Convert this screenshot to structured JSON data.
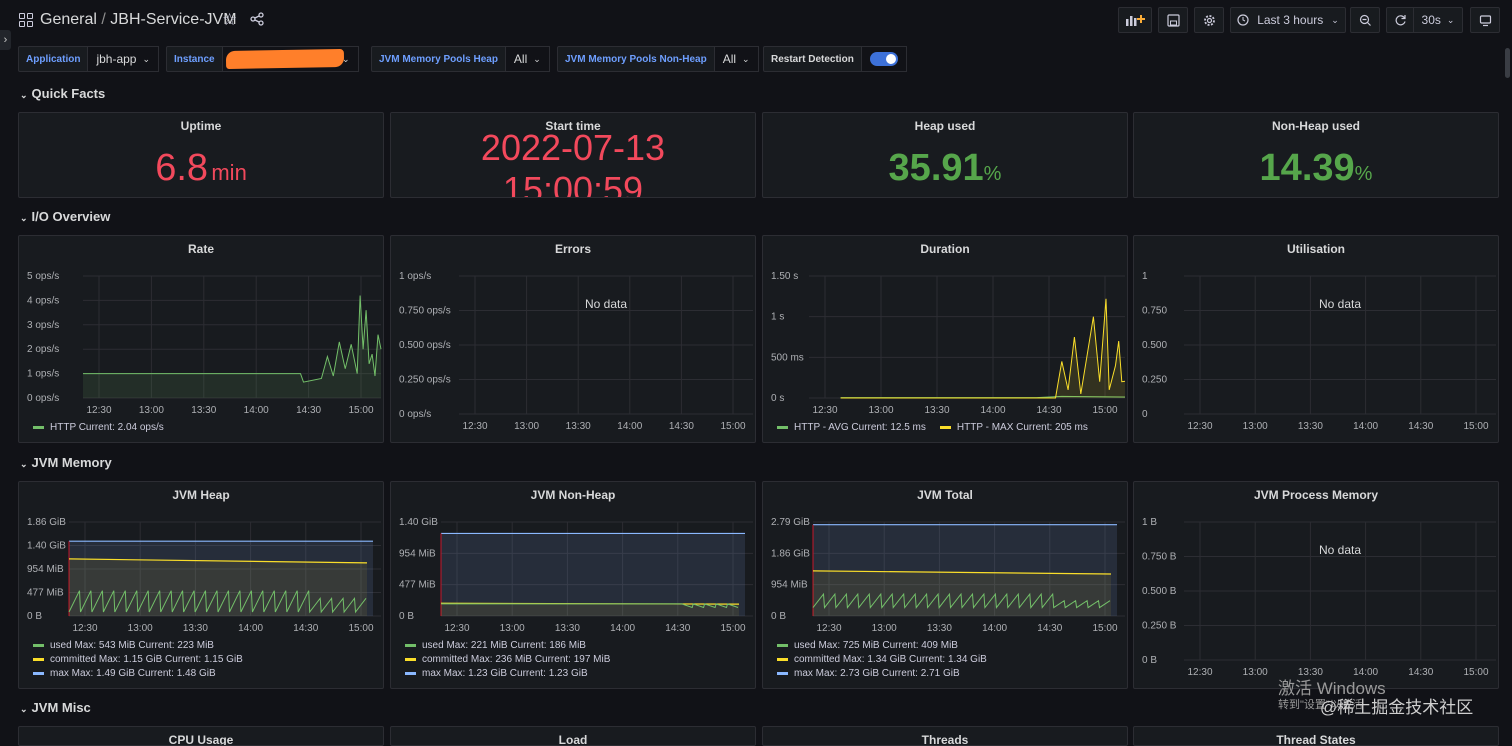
{
  "header": {
    "folder": "General",
    "separator": "/",
    "dashboard_title": "JBH-Service-JVM",
    "time_range": "Last 3 hours",
    "refresh": "30s"
  },
  "variables": [
    {
      "label": "Application",
      "value": "jbh-app"
    },
    {
      "label": "Instance",
      "value": ""
    },
    {
      "label": "JVM Memory Pools Heap",
      "value": "All"
    },
    {
      "label": "JVM Memory Pools Non-Heap",
      "value": "All"
    },
    {
      "label": "Restart Detection",
      "value": ""
    }
  ],
  "rows": {
    "quick_facts": "Quick Facts",
    "io_overview": "I/O Overview",
    "jvm_memory": "JVM Memory",
    "jvm_misc": "JVM Misc"
  },
  "stats": {
    "uptime": {
      "title": "Uptime",
      "value": "6.8",
      "unit": "min"
    },
    "start_time": {
      "title": "Start time",
      "line1": "2022-07-13",
      "line2": "15:00:59"
    },
    "heap_used": {
      "title": "Heap used",
      "value": "35.91",
      "unit": "%"
    },
    "nonheap_used": {
      "title": "Non-Heap used",
      "value": "14.39",
      "unit": "%"
    }
  },
  "no_data": "No data",
  "colors": {
    "red": "#f2495c",
    "green": "#73bf69",
    "yellow": "#fade2a",
    "cyan": "#8ab8ff",
    "accent": "#6e9fff"
  },
  "chart_data": [
    {
      "type": "line",
      "title": "Rate",
      "x": [
        "12:30",
        "13:00",
        "13:30",
        "14:00",
        "14:30",
        "15:00"
      ],
      "yticks": [
        "5 ops/s",
        "4 ops/s",
        "3 ops/s",
        "2 ops/s",
        "1 ops/s",
        "0 ops/s"
      ],
      "ylim": [
        0,
        5
      ],
      "series": [
        {
          "name": "HTTP",
          "legend": "HTTP  Current: 2.04 ops/s",
          "color": "#73bf69",
          "points": [
            [
              0,
              1
            ],
            [
              0.73,
              1
            ],
            [
              0.74,
              0.65
            ],
            [
              0.8,
              0.8
            ],
            [
              0.82,
              1.7
            ],
            [
              0.84,
              0.9
            ],
            [
              0.86,
              2.3
            ],
            [
              0.88,
              1.2
            ],
            [
              0.9,
              2.2
            ],
            [
              0.92,
              1.0
            ],
            [
              0.93,
              4.2
            ],
            [
              0.94,
              2.0
            ],
            [
              0.95,
              3.6
            ],
            [
              0.96,
              1.4
            ],
            [
              0.97,
              1.8
            ],
            [
              0.98,
              0.9
            ],
            [
              0.99,
              2.6
            ],
            [
              1.0,
              2.0
            ]
          ]
        }
      ]
    },
    {
      "type": "line",
      "title": "Errors",
      "x": [
        "12:30",
        "13:00",
        "13:30",
        "14:00",
        "14:30",
        "15:00"
      ],
      "yticks": [
        "1 ops/s",
        "0.750 ops/s",
        "0.500 ops/s",
        "0.250 ops/s",
        "0 ops/s"
      ],
      "series": []
    },
    {
      "type": "line",
      "title": "Duration",
      "x": [
        "12:30",
        "13:00",
        "13:30",
        "14:00",
        "14:30",
        "15:00"
      ],
      "yticks": [
        "1.50 s",
        "1 s",
        "500 ms",
        "0 s"
      ],
      "ylim": [
        0,
        1.5
      ],
      "series": [
        {
          "name": "HTTP - AVG",
          "legend": "HTTP - AVG  Current: 12.5 ms",
          "color": "#73bf69",
          "points": [
            [
              0.1,
              0.005
            ],
            [
              0.72,
              0.005
            ],
            [
              0.8,
              0.02
            ],
            [
              1.0,
              0.0125
            ]
          ]
        },
        {
          "name": "HTTP - MAX",
          "legend": "HTTP - MAX  Current: 205 ms",
          "color": "#fade2a",
          "points": [
            [
              0.1,
              0.0
            ],
            [
              0.78,
              0.0
            ],
            [
              0.8,
              0.45
            ],
            [
              0.82,
              0.1
            ],
            [
              0.84,
              0.75
            ],
            [
              0.86,
              0.05
            ],
            [
              0.9,
              1.0
            ],
            [
              0.92,
              0.2
            ],
            [
              0.94,
              1.22
            ],
            [
              0.95,
              0.1
            ],
            [
              0.97,
              0.4
            ],
            [
              0.98,
              0.7
            ],
            [
              0.99,
              0.2
            ],
            [
              1.0,
              0.205
            ]
          ]
        }
      ]
    },
    {
      "type": "line",
      "title": "Utilisation",
      "x": [
        "12:30",
        "13:00",
        "13:30",
        "14:00",
        "14:30",
        "15:00"
      ],
      "yticks": [
        "1",
        "0.750",
        "0.500",
        "0.250",
        "0"
      ],
      "series": []
    },
    {
      "type": "area",
      "title": "JVM Heap",
      "x": [
        "12:30",
        "13:00",
        "13:30",
        "14:00",
        "14:30",
        "15:00"
      ],
      "yticks": [
        "1.86 GiB",
        "1.40 GiB",
        "954 MiB",
        "477 MiB",
        "0 B"
      ],
      "ylim": [
        0,
        1.86
      ],
      "series": [
        {
          "name": "used",
          "legend": "used  Max: 543 MiB  Current: 223 MiB",
          "color": "#73bf69"
        },
        {
          "name": "committed",
          "legend": "committed  Max: 1.15 GiB  Current: 1.15 GiB",
          "color": "#fade2a"
        },
        {
          "name": "max",
          "legend": "max  Max: 1.49 GiB  Current: 1.48 GiB",
          "color": "#8ab8ff"
        }
      ]
    },
    {
      "type": "area",
      "title": "JVM Non-Heap",
      "x": [
        "12:30",
        "13:00",
        "13:30",
        "14:00",
        "14:30",
        "15:00"
      ],
      "yticks": [
        "1.40 GiB",
        "954 MiB",
        "477 MiB",
        "0 B"
      ],
      "ylim": [
        0,
        1.4
      ],
      "series": [
        {
          "name": "used",
          "legend": "used  Max: 221 MiB  Current: 186 MiB",
          "color": "#73bf69"
        },
        {
          "name": "committed",
          "legend": "committed  Max: 236 MiB  Current: 197 MiB",
          "color": "#fade2a"
        },
        {
          "name": "max",
          "legend": "max  Max: 1.23 GiB  Current: 1.23 GiB",
          "color": "#8ab8ff"
        }
      ]
    },
    {
      "type": "area",
      "title": "JVM Total",
      "x": [
        "12:30",
        "13:00",
        "13:30",
        "14:00",
        "14:30",
        "15:00"
      ],
      "yticks": [
        "2.79 GiB",
        "1.86 GiB",
        "954 MiB",
        "0 B"
      ],
      "ylim": [
        0,
        2.79
      ],
      "series": [
        {
          "name": "used",
          "legend": "used  Max: 725 MiB  Current: 409 MiB",
          "color": "#73bf69"
        },
        {
          "name": "committed",
          "legend": "committed  Max: 1.34 GiB  Current: 1.34 GiB",
          "color": "#fade2a"
        },
        {
          "name": "max",
          "legend": "max  Max: 2.73 GiB  Current: 2.71 GiB",
          "color": "#8ab8ff"
        }
      ]
    },
    {
      "type": "line",
      "title": "JVM Process Memory",
      "x": [
        "12:30",
        "13:00",
        "13:30",
        "14:00",
        "14:30",
        "15:00"
      ],
      "yticks": [
        "1 B",
        "0.750 B",
        "0.500 B",
        "0.250 B",
        "0 B"
      ],
      "series": []
    }
  ],
  "misc_panels": [
    "CPU Usage",
    "Load",
    "Threads",
    "Thread States"
  ],
  "watermark": {
    "line1": "激活 Windows",
    "line2": "转到\"设置\"以激活",
    "site": "@稀土掘金技术社区"
  }
}
